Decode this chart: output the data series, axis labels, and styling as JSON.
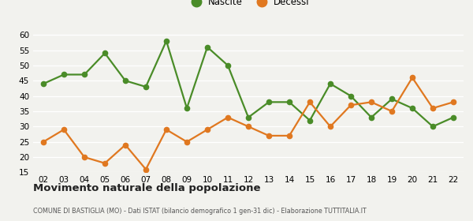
{
  "years": [
    "02",
    "03",
    "04",
    "05",
    "06",
    "07",
    "08",
    "09",
    "10",
    "11",
    "12",
    "13",
    "14",
    "15",
    "16",
    "17",
    "18",
    "19",
    "20",
    "21",
    "22"
  ],
  "nascite": [
    44,
    47,
    47,
    54,
    45,
    43,
    58,
    36,
    56,
    50,
    33,
    38,
    38,
    32,
    44,
    40,
    33,
    39,
    36,
    30,
    33
  ],
  "decessi": [
    25,
    29,
    20,
    18,
    24,
    16,
    29,
    25,
    29,
    33,
    30,
    27,
    27,
    38,
    30,
    37,
    38,
    35,
    46,
    36,
    38
  ],
  "nascite_color": "#4a8c28",
  "decessi_color": "#e07820",
  "bg_color": "#f2f2ee",
  "grid_color": "#ffffff",
  "ylim": [
    15,
    62
  ],
  "yticks": [
    15,
    20,
    25,
    30,
    35,
    40,
    45,
    50,
    55,
    60
  ],
  "title": "Movimento naturale della popolazione",
  "subtitle": "COMUNE DI BASTIGLIA (MO) - Dati ISTAT (bilancio demografico 1 gen-31 dic) - Elaborazione TUTTITALIA.IT",
  "legend_nascite": "Nascite",
  "legend_decessi": "Decessi",
  "marker_size": 4.5,
  "linewidth": 1.6
}
